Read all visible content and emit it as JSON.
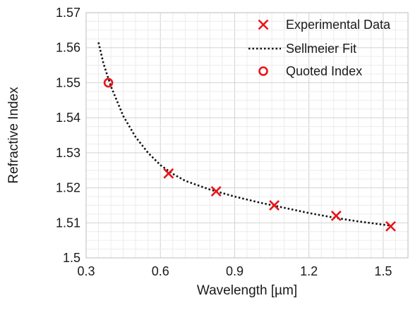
{
  "chart_data": {
    "type": "scatter",
    "xlabel": "Wavelength [µm]",
    "ylabel": "Refractive Index",
    "xlim": [
      0.3,
      1.6
    ],
    "ylim": [
      1.5,
      1.57
    ],
    "x_ticks": [
      0.3,
      0.6,
      0.9,
      1.2,
      1.5
    ],
    "x_tick_labels": [
      "0.3",
      "0.6",
      "0.9",
      "1.2",
      "1.5"
    ],
    "y_ticks": [
      1.5,
      1.51,
      1.52,
      1.53,
      1.54,
      1.55,
      1.56,
      1.57
    ],
    "y_tick_labels": [
      "1.5",
      "1.51",
      "1.52",
      "1.53",
      "1.54",
      "1.55",
      "1.56",
      "1.57"
    ],
    "grid": true,
    "legend_position": "top-right",
    "series": [
      {
        "name": "Experimental Data",
        "marker": "x",
        "color": "#e8141b",
        "x": [
          0.633,
          0.825,
          1.06,
          1.31,
          1.53
        ],
        "y": [
          1.5241,
          1.519,
          1.515,
          1.512,
          1.509
        ]
      },
      {
        "name": "Sellmeier Fit",
        "style": "dotted-line",
        "color": "#111111",
        "x": [
          0.35,
          0.37,
          0.4,
          0.45,
          0.5,
          0.55,
          0.6,
          0.65,
          0.7,
          0.8,
          0.9,
          1.0,
          1.1,
          1.2,
          1.3,
          1.4,
          1.53
        ],
        "y": [
          1.5615,
          1.5555,
          1.549,
          1.5405,
          1.5345,
          1.53,
          1.5265,
          1.524,
          1.522,
          1.5195,
          1.5175,
          1.5158,
          1.5143,
          1.5128,
          1.5115,
          1.5104,
          1.5092
        ]
      },
      {
        "name": "Quoted Index",
        "marker": "circle",
        "color": "#e8141b",
        "x": [
          0.39
        ],
        "y": [
          1.55
        ]
      }
    ]
  }
}
